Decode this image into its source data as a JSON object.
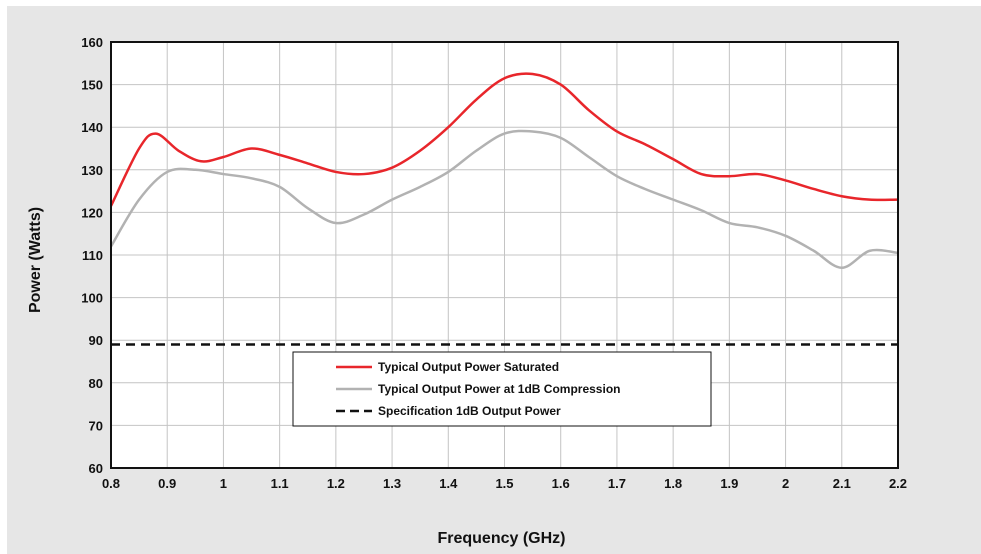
{
  "chart_data": {
    "type": "line",
    "xlabel": "Frequency (GHz)",
    "ylabel": "Power (Watts)",
    "xlim": [
      0.8,
      2.2
    ],
    "ylim": [
      60,
      160
    ],
    "xticks": [
      "0.8",
      "0.9",
      "1",
      "1.1",
      "1.2",
      "1.3",
      "1.4",
      "1.5",
      "1.6",
      "1.7",
      "1.8",
      "1.9",
      "2",
      "2.1",
      "2.2"
    ],
    "yticks": [
      "60",
      "70",
      "80",
      "90",
      "100",
      "110",
      "120",
      "130",
      "140",
      "150",
      "160"
    ],
    "grid": true,
    "legend_position": "lower-center",
    "series": [
      {
        "name": "Typical Output Power Saturated",
        "color": "#e8262b",
        "style": "solid",
        "x": [
          0.8,
          0.85,
          0.88,
          0.92,
          0.96,
          1.0,
          1.05,
          1.1,
          1.15,
          1.2,
          1.25,
          1.3,
          1.35,
          1.4,
          1.45,
          1.5,
          1.55,
          1.6,
          1.65,
          1.7,
          1.75,
          1.8,
          1.85,
          1.9,
          1.95,
          2.0,
          2.05,
          2.1,
          2.15,
          2.2
        ],
        "y": [
          121.5,
          135,
          138.5,
          134.5,
          132,
          133,
          135,
          133.5,
          131.5,
          129.5,
          129,
          130.5,
          134.5,
          140,
          146.5,
          151.5,
          152.5,
          150,
          144,
          139,
          136,
          132.5,
          129,
          128.5,
          129,
          127.5,
          125.5,
          123.8,
          123,
          123
        ]
      },
      {
        "name": "Typical Output Power at 1dB Compression",
        "color": "#b2b2b2",
        "style": "solid",
        "x": [
          0.8,
          0.85,
          0.9,
          0.95,
          1.0,
          1.05,
          1.1,
          1.15,
          1.2,
          1.25,
          1.3,
          1.35,
          1.4,
          1.45,
          1.5,
          1.55,
          1.6,
          1.65,
          1.7,
          1.75,
          1.8,
          1.85,
          1.9,
          1.95,
          2.0,
          2.05,
          2.1,
          2.15,
          2.2
        ],
        "y": [
          112,
          123,
          129.5,
          130,
          129,
          128,
          126,
          121,
          117.5,
          119.5,
          123,
          126,
          129.5,
          134.5,
          138.5,
          139,
          137.5,
          133,
          128.5,
          125.5,
          123,
          120.5,
          117.5,
          116.5,
          114.5,
          111,
          107,
          111,
          110.5
        ]
      },
      {
        "name": "Specification 1dB Output Power",
        "color": "#111111",
        "style": "dashed",
        "x": [
          0.8,
          2.2
        ],
        "y": [
          89,
          89
        ]
      }
    ]
  }
}
